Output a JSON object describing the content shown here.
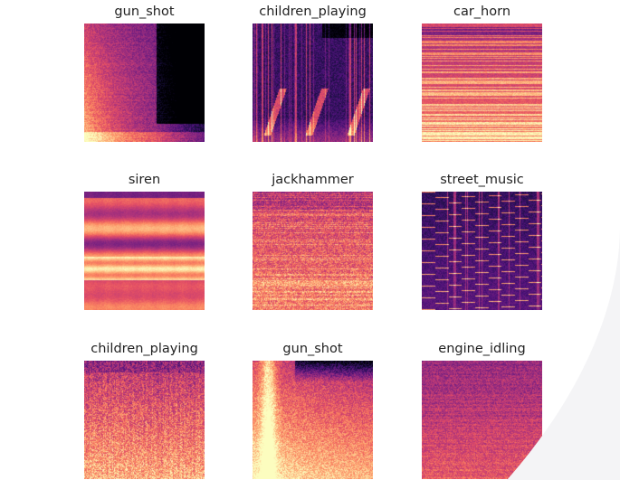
{
  "grid": [
    {
      "title": "gun_shot",
      "kind": "gunshot_decay"
    },
    {
      "title": "children_playing",
      "kind": "dark_vertical_bursts"
    },
    {
      "title": "car_horn",
      "kind": "horizontal_harmonics"
    },
    {
      "title": "siren",
      "kind": "horizontal_bands"
    },
    {
      "title": "jackhammer",
      "kind": "broadband_noise"
    },
    {
      "title": "street_music",
      "kind": "sparse_harmonics"
    },
    {
      "title": "children_playing",
      "kind": "broadband_speckle"
    },
    {
      "title": "gun_shot",
      "kind": "impulse_stripe"
    },
    {
      "title": "engine_idling",
      "kind": "low_noise"
    }
  ],
  "colormap": "magma"
}
